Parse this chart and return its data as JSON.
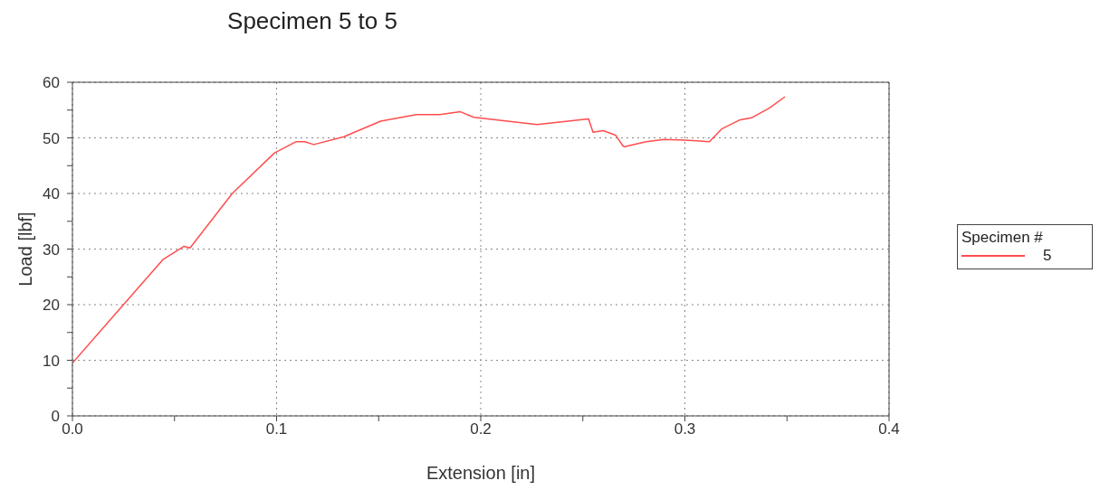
{
  "chart_data": {
    "type": "line",
    "title": "Specimen 5 to 5",
    "xlabel": "Extension [in]",
    "ylabel": "Load [lbf]",
    "legend_title": "Specimen #",
    "x": [
      0,
      0.025,
      0.0443,
      0.0547,
      0.0576,
      0.0783,
      0.099,
      0.1094,
      0.1138,
      0.1182,
      0.133,
      0.151,
      0.1685,
      0.18,
      0.19,
      0.1966,
      0.2276,
      0.2528,
      0.255,
      0.26,
      0.266,
      0.2698,
      0.2705,
      0.281,
      0.2897,
      0.3,
      0.312,
      0.318,
      0.3267,
      0.3326,
      0.3415,
      0.349
    ],
    "series": [
      {
        "name": "5",
        "color": "#ff4d4d",
        "values": [
          9.5,
          20,
          28.1,
          30.5,
          30.2,
          40,
          47.3,
          49.3,
          49.3,
          48.8,
          50.2,
          53,
          54.2,
          54.2,
          54.7,
          53.7,
          52.4,
          53.4,
          51,
          51.3,
          50.5,
          48.5,
          48.4,
          49.3,
          49.7,
          49.6,
          49.3,
          51.6,
          53.2,
          53.6,
          55.4,
          57.4
        ]
      }
    ],
    "xlim": [
      0,
      0.4
    ],
    "ylim": [
      0,
      60
    ],
    "xticks": [
      {
        "value": 0,
        "label": "0.0"
      },
      {
        "value": 0.05,
        "label": null
      },
      {
        "value": 0.1,
        "label": "0.1"
      },
      {
        "value": 0.15,
        "label": null
      },
      {
        "value": 0.2,
        "label": "0.2"
      },
      {
        "value": 0.25,
        "label": null
      },
      {
        "value": 0.3,
        "label": "0.3"
      },
      {
        "value": 0.35,
        "label": null
      },
      {
        "value": 0.4,
        "label": "0.4"
      }
    ],
    "yticks": [
      0,
      {
        "value": 5,
        "label": null
      },
      10,
      {
        "value": 15,
        "label": null
      },
      20,
      {
        "value": 25,
        "label": null
      },
      30,
      {
        "value": 35,
        "label": null
      },
      40,
      {
        "value": 45,
        "label": null
      },
      50,
      {
        "value": 55,
        "label": null
      },
      60
    ],
    "grid": true,
    "legend": "right"
  }
}
